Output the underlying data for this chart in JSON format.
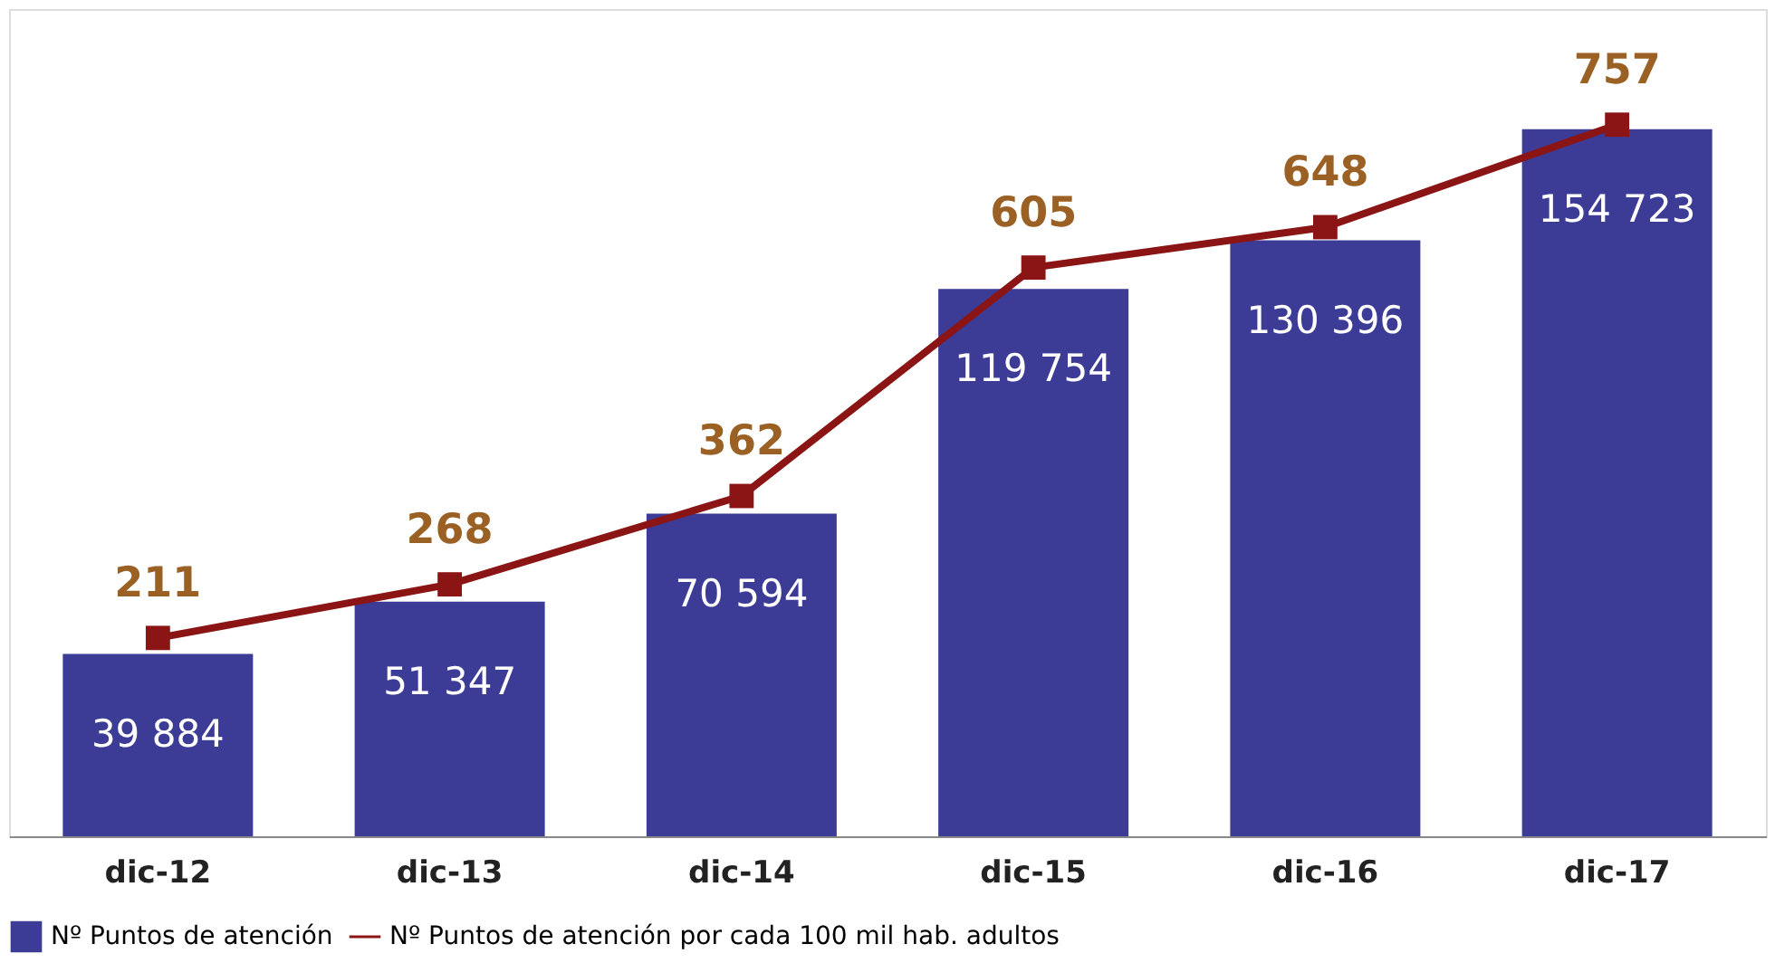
{
  "chart_data": {
    "type": "bar",
    "categories": [
      "dic-12",
      "dic-13",
      "dic-14",
      "dic-15",
      "dic-16",
      "dic-17"
    ],
    "series": [
      {
        "name": "Nº Puntos de atención",
        "color": "#3c3c96",
        "values": [
          39884,
          51347,
          70594,
          119754,
          130396,
          154723
        ],
        "value_labels": [
          "39 884",
          "51 347",
          "70 594",
          "119 754",
          "130 396",
          "154 723"
        ]
      },
      {
        "name": "Nº Puntos de atención por cada 100 mil hab. adultos",
        "type": "line",
        "axis": "y2",
        "color": "#8b1414",
        "marker": "square",
        "values": [
          211,
          268,
          362,
          605,
          648,
          757
        ]
      }
    ],
    "ylim": [
      0,
      181000
    ],
    "y2lim": [
      0,
      880
    ],
    "data_labels": true,
    "grid": false,
    "legend": "bottom",
    "tick_labels": "x"
  }
}
